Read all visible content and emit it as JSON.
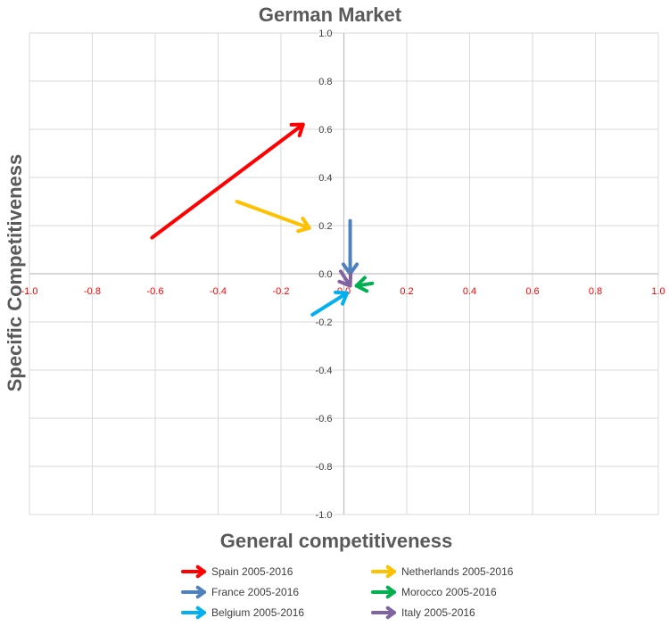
{
  "chart_data": {
    "type": "vector-arrows",
    "title": "German Market",
    "xlabel": "General competitiveness",
    "ylabel": "Specific Competitiveness",
    "xlim": [
      -1.0,
      1.0
    ],
    "ylim": [
      -1.0,
      1.0
    ],
    "x_ticks": [
      "-1.0",
      "-0.8",
      "-0.6",
      "-0.4",
      "-0.2",
      "0.0",
      "0.2",
      "0.4",
      "0.6",
      "0.8",
      "1.0"
    ],
    "y_ticks": [
      "1.0",
      "0.8",
      "0.6",
      "0.4",
      "0.2",
      "0.0",
      "-0.2",
      "-0.4",
      "-0.6",
      "-0.8",
      "-1.0"
    ],
    "x_tick_color": "#ff0000",
    "grid": true,
    "legend_position": "bottom",
    "series": [
      {
        "name": "Spain 2005-2016",
        "color": "#ff0000",
        "start": [
          -0.61,
          0.15
        ],
        "end": [
          -0.13,
          0.62
        ]
      },
      {
        "name": "Netherlands 2005-2016",
        "color": "#ffc000",
        "start": [
          -0.34,
          0.3
        ],
        "end": [
          -0.11,
          0.19
        ]
      },
      {
        "name": "France 2005-2016",
        "color": "#4f81bd",
        "start": [
          0.02,
          0.22
        ],
        "end": [
          0.02,
          0.0
        ]
      },
      {
        "name": "Morocco 2005-2016",
        "color": "#00b050",
        "start": [
          0.09,
          -0.04
        ],
        "end": [
          0.04,
          -0.05
        ]
      },
      {
        "name": "Belgium 2005-2016",
        "color": "#00b0f0",
        "start": [
          -0.1,
          -0.17
        ],
        "end": [
          0.01,
          -0.08
        ]
      },
      {
        "name": "Italy 2005-2016",
        "color": "#8064a2",
        "start": [
          -0.01,
          0.01
        ],
        "end": [
          0.02,
          -0.05
        ]
      }
    ]
  }
}
